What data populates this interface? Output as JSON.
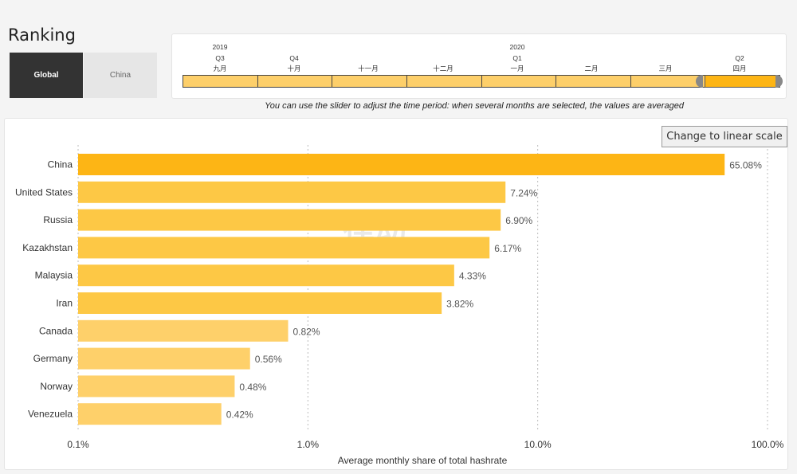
{
  "page": {
    "title": "Ranking"
  },
  "tabs": [
    {
      "label": "Global",
      "active": true
    },
    {
      "label": "China",
      "active": false
    }
  ],
  "slider": {
    "years": [
      "2019",
      "2020"
    ],
    "quarters": [
      "Q3",
      "Q4",
      "Q1",
      "Q2"
    ],
    "months": [
      "九月",
      "十月",
      "十一月",
      "十二月",
      "一月",
      "二月",
      "三月",
      "四月"
    ],
    "selected_month": "四月",
    "note": "You can use the slider to adjust the time period: when several months are selected, the values are averaged"
  },
  "scale_button": {
    "label": "Change to linear scale"
  },
  "watermark": "律动",
  "colors": {
    "bar_strong": "#fdb515",
    "bar_mid": "#fdc845",
    "bar_light": "#fed06a",
    "grid": "#bbbbbb"
  },
  "chart_data": {
    "type": "bar",
    "orientation": "horizontal",
    "scale": "log",
    "categories": [
      "China",
      "United States",
      "Russia",
      "Kazakhstan",
      "Malaysia",
      "Iran",
      "Canada",
      "Germany",
      "Norway",
      "Venezuela"
    ],
    "values": [
      65.08,
      7.24,
      6.9,
      6.17,
      4.33,
      3.82,
      0.82,
      0.56,
      0.48,
      0.42
    ],
    "value_labels": [
      "65.08%",
      "7.24%",
      "6.90%",
      "6.17%",
      "4.33%",
      "3.82%",
      "0.82%",
      "0.56%",
      "0.48%",
      "0.42%"
    ],
    "xticks": [
      0.1,
      1,
      10,
      100
    ],
    "xtick_labels": [
      "0.1%",
      "1.0%",
      "10.0%",
      "100.0%"
    ],
    "xlim": [
      0.1,
      100
    ],
    "xlabel": "Average monthly share of total hashrate",
    "ylabel": "",
    "grid": true
  }
}
